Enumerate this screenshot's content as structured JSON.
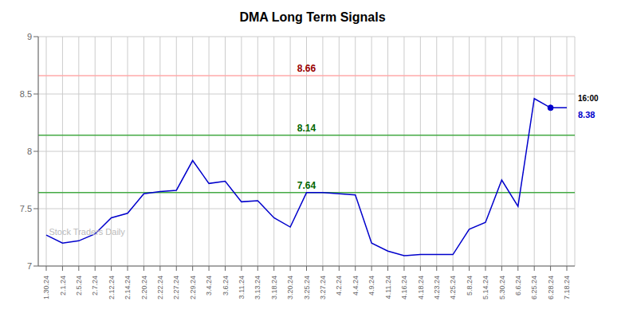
{
  "chart_data": {
    "type": "line",
    "title": "DMA Long Term Signals",
    "categories": [
      "1.30.24",
      "2.1.24",
      "2.5.24",
      "2.7.24",
      "2.12.24",
      "2.14.24",
      "2.20.24",
      "2.22.24",
      "2.27.24",
      "2.29.24",
      "3.4.24",
      "3.6.24",
      "3.11.24",
      "3.13.24",
      "3.18.24",
      "3.20.24",
      "3.25.24",
      "3.27.24",
      "4.2.24",
      "4.4.24",
      "4.9.24",
      "4.11.24",
      "4.16.24",
      "4.18.24",
      "4.23.24",
      "4.25.24",
      "5.8.24",
      "5.14.24",
      "5.30.24",
      "6.6.24",
      "6.25.24",
      "6.28.24",
      "7.18.24"
    ],
    "values": [
      7.27,
      7.2,
      7.22,
      7.28,
      7.42,
      7.46,
      7.63,
      7.65,
      7.66,
      7.92,
      7.72,
      7.74,
      7.56,
      7.57,
      7.42,
      7.34,
      7.64,
      7.64,
      7.63,
      7.62,
      7.2,
      7.13,
      7.09,
      7.1,
      7.1,
      7.1,
      7.32,
      7.38,
      7.75,
      7.52,
      8.46,
      8.38,
      8.38
    ],
    "color": "#0000cc",
    "ylim": [
      7.0,
      9.0
    ],
    "yticks": [
      7.0,
      7.5,
      8.0,
      8.5,
      9.0
    ],
    "grid": true,
    "reference_lines": [
      {
        "value": 8.66,
        "label": "8.66",
        "color": "#ffaaaa",
        "label_color": "#990000"
      },
      {
        "value": 8.14,
        "label": "8.14",
        "color": "#44aa44",
        "label_color": "#006600"
      },
      {
        "value": 7.64,
        "label": "7.64",
        "color": "#44aa44",
        "label_color": "#006600"
      }
    ],
    "annotations": [
      {
        "text": "16:00",
        "category": "6.28.24"
      },
      {
        "text": "8.38",
        "category": "6.28.24",
        "color": "#0000cc"
      },
      {
        "text": "Stock Traders Daily",
        "color": "#bbbbbb"
      }
    ]
  }
}
